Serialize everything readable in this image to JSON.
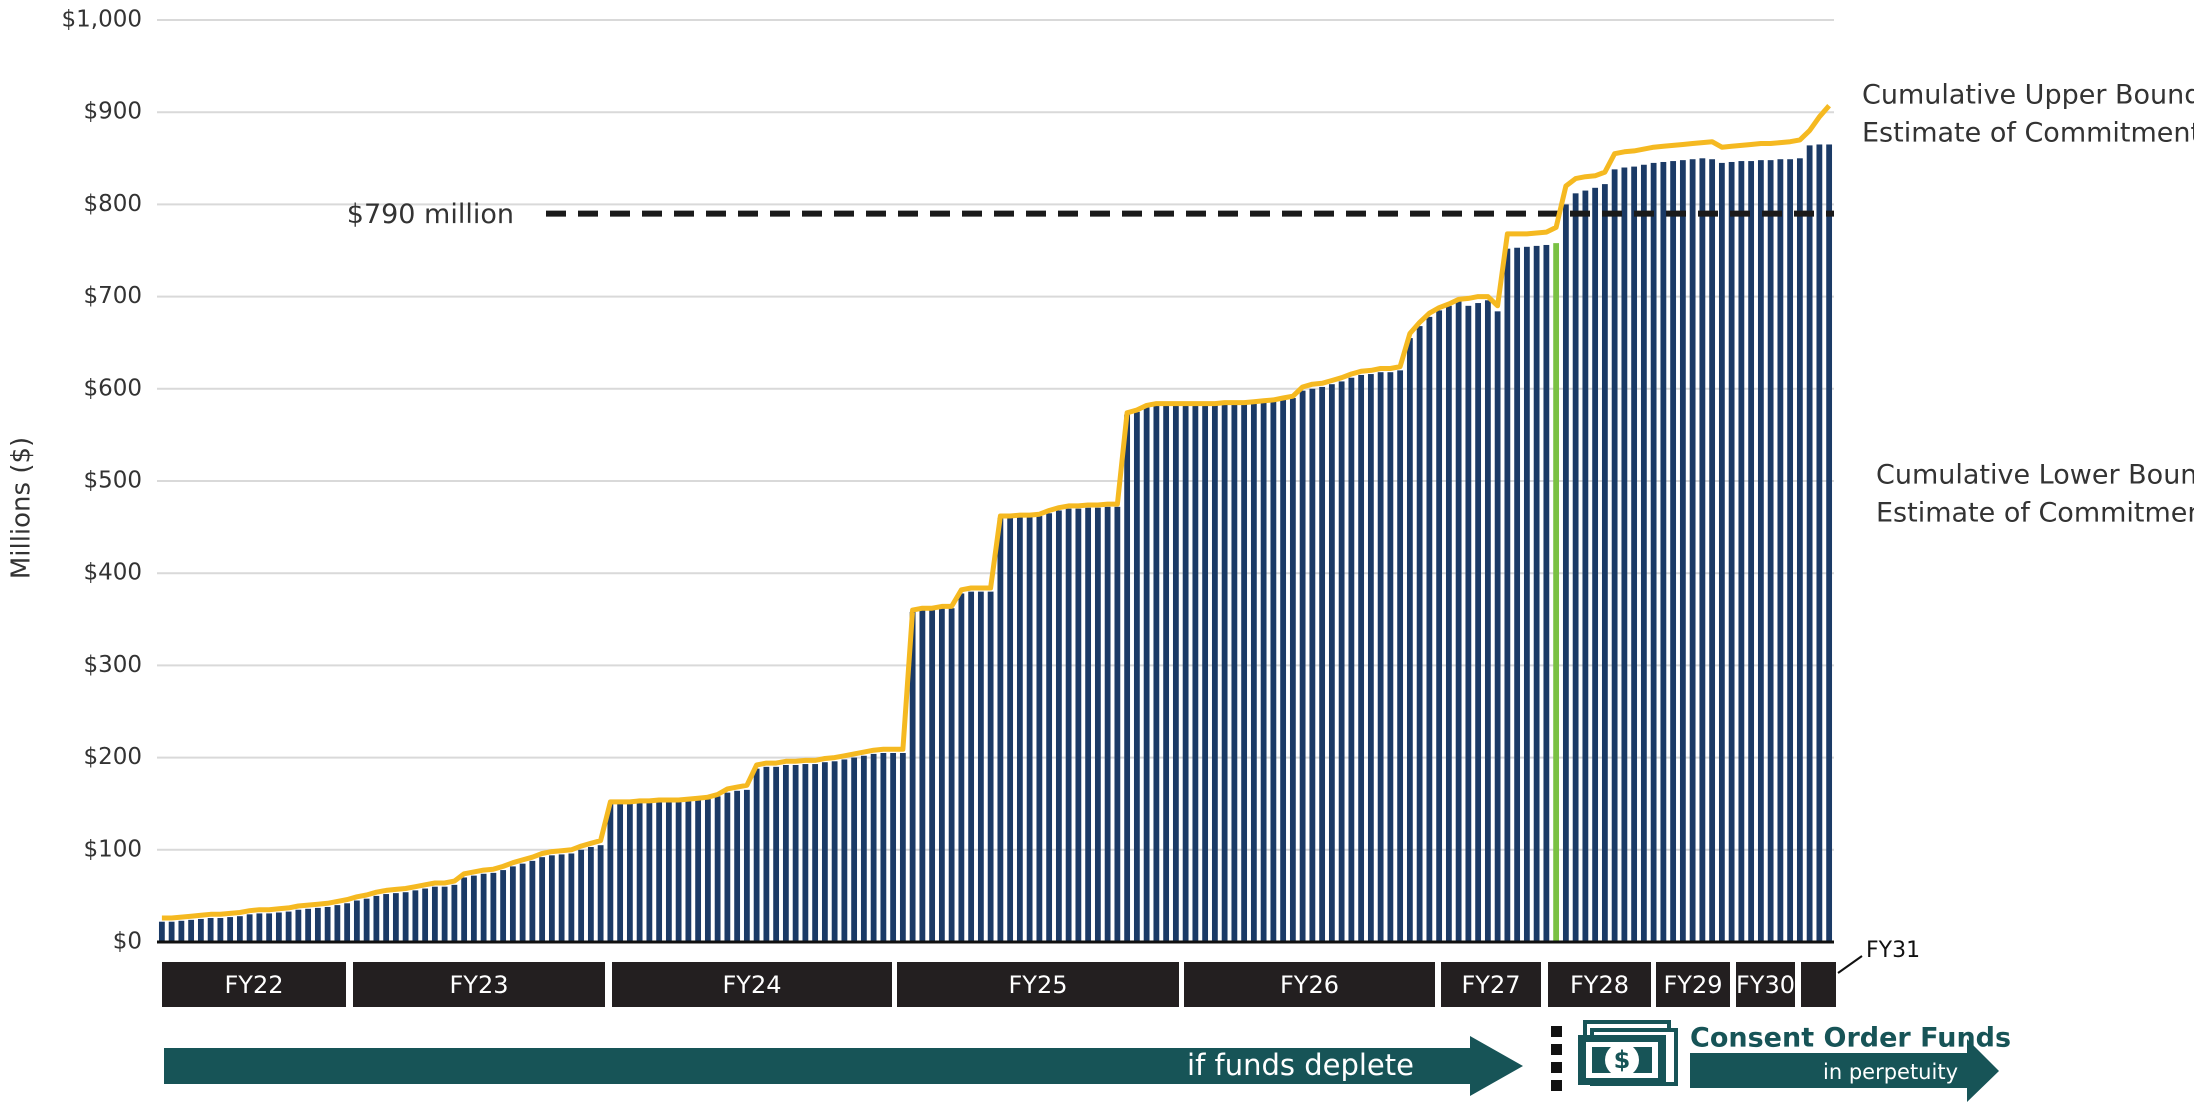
{
  "chart_data": {
    "type": "bar",
    "y_axis_label": "Millions ($)",
    "ylim": [
      0,
      1000
    ],
    "yticks": [
      {
        "value": 0,
        "label": "$0"
      },
      {
        "value": 100,
        "label": "$100"
      },
      {
        "value": 200,
        "label": "$200"
      },
      {
        "value": 300,
        "label": "$300"
      },
      {
        "value": 400,
        "label": "$400"
      },
      {
        "value": 500,
        "label": "$500"
      },
      {
        "value": 600,
        "label": "$600"
      },
      {
        "value": 700,
        "label": "$700"
      },
      {
        "value": 800,
        "label": "$800"
      },
      {
        "value": 900,
        "label": "$900"
      },
      {
        "value": 1000,
        "label": "$1,000"
      }
    ],
    "grid": true,
    "reference_line": {
      "value": 790,
      "label": "$790 million"
    },
    "highlight": {
      "index": 143,
      "color": "#7ac143"
    },
    "series": [
      {
        "labels": [
          "Cumulative Lower Bound",
          "Estimate of Commitments"
        ],
        "color": "#1b3a66",
        "values": [
          22,
          22,
          23,
          24,
          25,
          26,
          26,
          27,
          28,
          30,
          31,
          31,
          32,
          33,
          35,
          36,
          37,
          38,
          40,
          42,
          45,
          47,
          50,
          52,
          53,
          54,
          56,
          58,
          60,
          60,
          62,
          70,
          72,
          74,
          75,
          78,
          82,
          85,
          88,
          92,
          94,
          95,
          96,
          100,
          103,
          105,
          150,
          150,
          150,
          151,
          151,
          152,
          152,
          152,
          153,
          154,
          155,
          158,
          162,
          164,
          165,
          188,
          190,
          190,
          192,
          192,
          193,
          193,
          195,
          196,
          198,
          200,
          202,
          204,
          205,
          205,
          205,
          358,
          360,
          360,
          362,
          362,
          378,
          380,
          380,
          380,
          460,
          460,
          461,
          461,
          462,
          465,
          468,
          470,
          470,
          471,
          471,
          472,
          472,
          572,
          575,
          580,
          582,
          582,
          582,
          582,
          582,
          582,
          582,
          583,
          583,
          583,
          584,
          585,
          586,
          588,
          590,
          598,
          600,
          602,
          605,
          608,
          612,
          615,
          616,
          618,
          618,
          620,
          655,
          668,
          678,
          685,
          690,
          695,
          690,
          693,
          696,
          684,
          752,
          753,
          754,
          755,
          756,
          758,
          800,
          812,
          815,
          818,
          822,
          838,
          840,
          841,
          843,
          845,
          846,
          847,
          848,
          849,
          850,
          849,
          845,
          846,
          847,
          847,
          848,
          848,
          849,
          849,
          850,
          864,
          865,
          865
        ]
      },
      {
        "labels": [
          "Cumulative Upper Bound",
          "Estimate of Commitments"
        ],
        "color": "#f5b921",
        "values": [
          26,
          26,
          27,
          28,
          29,
          30,
          30,
          31,
          32,
          34,
          35,
          35,
          36,
          37,
          39,
          40,
          41,
          42,
          44,
          46,
          49,
          51,
          54,
          56,
          57,
          58,
          60,
          62,
          64,
          64,
          66,
          74,
          76,
          78,
          79,
          82,
          86,
          89,
          92,
          96,
          98,
          99,
          100,
          104,
          107,
          110,
          152,
          152,
          152,
          153,
          153,
          154,
          154,
          154,
          155,
          156,
          157,
          160,
          166,
          168,
          170,
          192,
          194,
          194,
          196,
          196,
          197,
          197,
          199,
          200,
          202,
          204,
          206,
          208,
          209,
          209,
          209,
          360,
          362,
          362,
          364,
          364,
          382,
          384,
          384,
          384,
          462,
          462,
          463,
          463,
          464,
          468,
          471,
          473,
          473,
          474,
          474,
          475,
          475,
          574,
          577,
          582,
          584,
          584,
          584,
          584,
          584,
          584,
          584,
          585,
          585,
          585,
          586,
          587,
          588,
          590,
          592,
          602,
          605,
          606,
          609,
          612,
          616,
          619,
          620,
          622,
          622,
          624,
          660,
          672,
          682,
          688,
          692,
          697,
          698,
          700,
          700,
          690,
          768,
          768,
          768,
          769,
          770,
          775,
          820,
          828,
          830,
          831,
          835,
          855,
          857,
          858,
          860,
          862,
          863,
          864,
          865,
          866,
          867,
          868,
          862,
          863,
          864,
          865,
          866,
          866,
          867,
          868,
          870,
          880,
          895,
          907
        ]
      }
    ],
    "fiscal_years": [
      "FY22",
      "FY23",
      "FY24",
      "FY25",
      "FY26",
      "FY27",
      "FY28",
      "FY29",
      "FY30",
      "FY31"
    ],
    "bottom_labels": {
      "deplete": "if funds deplete",
      "consent": "Consent Order Funds",
      "perpetuity": "in perpetuity"
    }
  }
}
